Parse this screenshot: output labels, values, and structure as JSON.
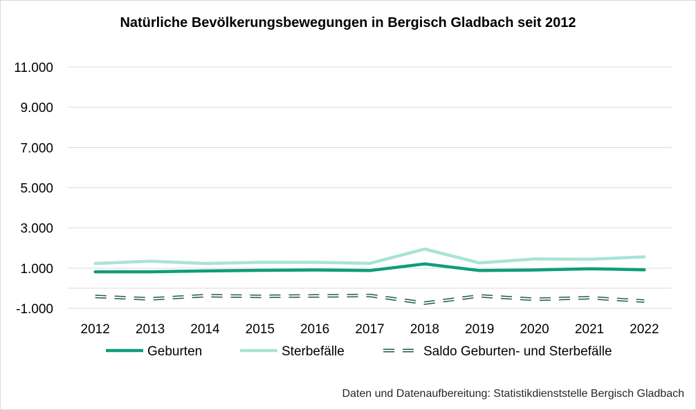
{
  "colors": {
    "geburten": "#0f9d7a",
    "sterbefaelle": "#a9e3d6",
    "saldo_stroke": "#1f5a48",
    "grid": "#d9d9d9"
  },
  "chart_data": {
    "type": "line",
    "title": "Natürliche Bevölkerungsbewegungen in Bergisch Gladbach seit 2012",
    "xlabel": "",
    "ylabel": "",
    "ylim": [
      -1000,
      11000
    ],
    "yticks": [
      -1000,
      1000,
      3000,
      5000,
      7000,
      9000,
      11000
    ],
    "ytick_labels": [
      "-1.000",
      "1.000",
      "3.000",
      "5.000",
      "7.000",
      "9.000",
      "11.000"
    ],
    "categories": [
      "2012",
      "2013",
      "2014",
      "2015",
      "2016",
      "2017",
      "2018",
      "2019",
      "2020",
      "2021",
      "2022"
    ],
    "grid": true,
    "legend_position": "bottom",
    "series": [
      {
        "name": "Geburten",
        "values": [
          820,
          820,
          860,
          890,
          910,
          880,
          1210,
          880,
          910,
          970,
          920
        ],
        "style": "solid-thick"
      },
      {
        "name": "Sterbefälle",
        "values": [
          1230,
          1350,
          1230,
          1290,
          1290,
          1240,
          1950,
          1260,
          1460,
          1440,
          1560
        ],
        "style": "solid"
      },
      {
        "name": "Saldo Geburten- und Sterbefälle",
        "values": [
          -410,
          -530,
          -370,
          -400,
          -380,
          -360,
          -740,
          -380,
          -550,
          -470,
          -640
        ],
        "style": "dashed"
      }
    ],
    "source": "Daten und Datenaufbereitung: Statistikdienststelle Bergisch Gladbach"
  }
}
